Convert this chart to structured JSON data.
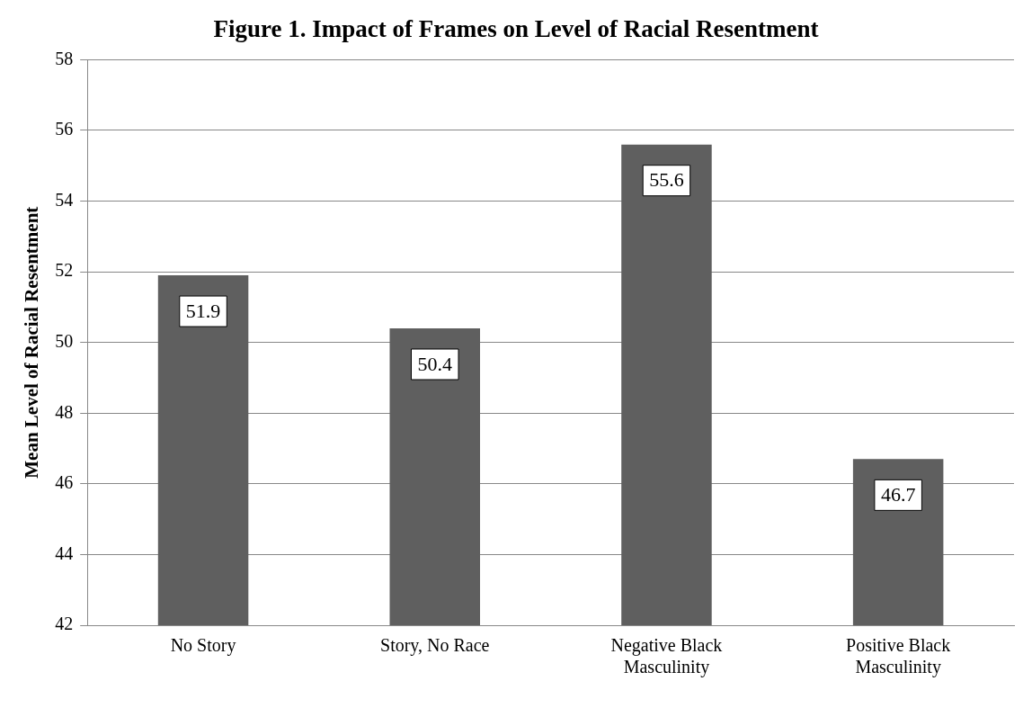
{
  "chart_data": {
    "type": "bar",
    "title": "Figure 1. Impact of Frames on Level of Racial Resentment",
    "ylabel": "Mean Level of Racial Resentment",
    "categories": [
      "No Story",
      "Story, No Race",
      "Negative Black Masculinity",
      "Positive Black Masculinity"
    ],
    "values": [
      51.9,
      50.4,
      55.6,
      46.7
    ],
    "color": "#5f5f5f",
    "ylim": [
      42,
      58
    ],
    "yticks": [
      42,
      44,
      46,
      48,
      50,
      52,
      54,
      56,
      58
    ],
    "grid": "y",
    "legend": false,
    "data_labels": true
  }
}
